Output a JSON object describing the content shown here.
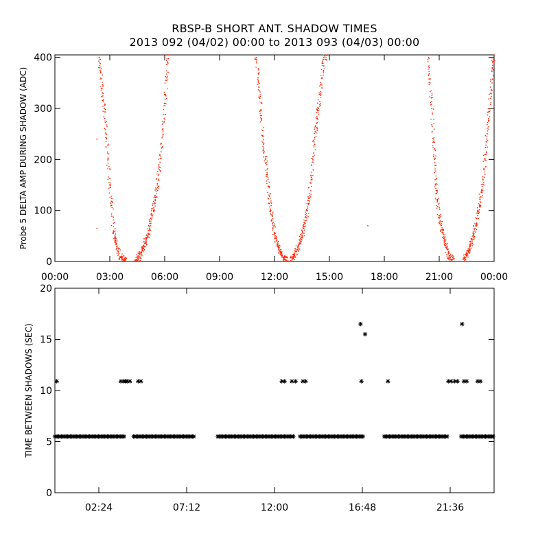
{
  "title": "RBSP-B SHORT ANT. SHADOW TIMES",
  "subtitle": "2013 092 (04/02) 00:00 to 2013 093 (04/03) 00:00",
  "colors": {
    "top_points": "#ff2200",
    "bottom_points": "#000000",
    "axes": "#000000"
  },
  "chart_data": [
    {
      "type": "scatter",
      "ylabel": "Probe 5 DELTA AMP DURING SHADOW (ADC)",
      "xlabel": "",
      "x_unit": "hours since 2013-04-02 00:00",
      "xlim": [
        0,
        24
      ],
      "ylim": [
        0,
        405
      ],
      "xticks": [
        0,
        3,
        6,
        9,
        12,
        15,
        18,
        21,
        24
      ],
      "xtick_labels": [
        "00:00",
        "03:00",
        "06:00",
        "09:00",
        "12:00",
        "15:00",
        "18:00",
        "21:00",
        "00:00"
      ],
      "yticks": [
        0,
        100,
        200,
        300,
        400
      ],
      "ytick_labels": [
        "0",
        "100",
        "200",
        "300",
        "400"
      ],
      "marker": "dot",
      "color": "#ff2200",
      "series": [
        {
          "points": [
            [
              2.3,
              240
            ],
            [
              2.3,
              65
            ],
            [
              17.1,
              70
            ]
          ]
        },
        {
          "points": [
            [
              2.42,
              400
            ],
            [
              2.5,
              370
            ],
            [
              2.6,
              330
            ],
            [
              2.7,
              300
            ],
            [
              2.8,
              250
            ],
            [
              2.9,
              200
            ],
            [
              3.0,
              150
            ],
            [
              3.1,
              110
            ],
            [
              3.2,
              60
            ],
            [
              3.3,
              45
            ],
            [
              3.4,
              30
            ],
            [
              3.5,
              15
            ],
            [
              3.6,
              8
            ],
            [
              3.7,
              4
            ],
            [
              3.8,
              2
            ],
            [
              3.88,
              0
            ],
            [
              11.0,
              400
            ],
            [
              11.1,
              360
            ],
            [
              11.2,
              320
            ],
            [
              11.3,
              280
            ],
            [
              11.4,
              230
            ],
            [
              11.5,
              200
            ],
            [
              11.6,
              170
            ],
            [
              11.7,
              130
            ],
            [
              11.8,
              100
            ],
            [
              11.9,
              75
            ],
            [
              12.0,
              55
            ],
            [
              12.1,
              40
            ],
            [
              12.2,
              28
            ],
            [
              12.3,
              20
            ],
            [
              12.4,
              12
            ],
            [
              12.5,
              6
            ],
            [
              12.6,
              3
            ],
            [
              12.7,
              0
            ],
            [
              20.42,
              400
            ],
            [
              20.5,
              350
            ],
            [
              20.6,
              300
            ],
            [
              20.7,
              240
            ],
            [
              20.75,
              200
            ],
            [
              20.8,
              150
            ],
            [
              20.9,
              120
            ],
            [
              21.0,
              90
            ],
            [
              21.1,
              70
            ],
            [
              21.2,
              55
            ],
            [
              21.3,
              40
            ],
            [
              21.4,
              25
            ],
            [
              21.5,
              15
            ],
            [
              21.6,
              8
            ],
            [
              21.7,
              3
            ],
            [
              21.8,
              0
            ]
          ]
        },
        {
          "points": [
            [
              4.4,
              0
            ],
            [
              4.5,
              5
            ],
            [
              4.6,
              10
            ],
            [
              4.7,
              18
            ],
            [
              4.8,
              25
            ],
            [
              4.9,
              35
            ],
            [
              5.0,
              45
            ],
            [
              5.1,
              55
            ],
            [
              5.2,
              70
            ],
            [
              5.3,
              90
            ],
            [
              5.4,
              105
            ],
            [
              5.5,
              125
            ],
            [
              5.6,
              150
            ],
            [
              5.7,
              180
            ],
            [
              5.8,
              215
            ],
            [
              5.9,
              260
            ],
            [
              6.0,
              310
            ],
            [
              6.1,
              360
            ],
            [
              6.2,
              405
            ],
            [
              12.9,
              0
            ],
            [
              13.0,
              5
            ],
            [
              13.1,
              12
            ],
            [
              13.2,
              20
            ],
            [
              13.3,
              30
            ],
            [
              13.4,
              40
            ],
            [
              13.5,
              52
            ],
            [
              13.6,
              65
            ],
            [
              13.7,
              80
            ],
            [
              13.8,
              100
            ],
            [
              13.9,
              125
            ],
            [
              14.0,
              160
            ],
            [
              14.1,
              200
            ],
            [
              14.2,
              240
            ],
            [
              14.3,
              270
            ],
            [
              14.4,
              300
            ],
            [
              14.5,
              330
            ],
            [
              14.6,
              360
            ],
            [
              14.7,
              400
            ],
            [
              14.9,
              405
            ],
            [
              22.3,
              0
            ],
            [
              22.4,
              5
            ],
            [
              22.5,
              12
            ],
            [
              22.6,
              20
            ],
            [
              22.7,
              30
            ],
            [
              22.8,
              40
            ],
            [
              22.9,
              55
            ],
            [
              23.0,
              70
            ],
            [
              23.1,
              90
            ],
            [
              23.2,
              110
            ],
            [
              23.3,
              135
            ],
            [
              23.4,
              160
            ],
            [
              23.5,
              200
            ],
            [
              23.6,
              240
            ],
            [
              23.7,
              280
            ],
            [
              23.8,
              330
            ],
            [
              23.9,
              380
            ],
            [
              24.0,
              405
            ]
          ]
        }
      ]
    },
    {
      "type": "scatter",
      "ylabel": "TIME BETWEEN SHADOWS (SEC)",
      "xlabel": "",
      "x_unit": "hours since 2013-04-02 00:00",
      "xlim": [
        0,
        24
      ],
      "ylim": [
        0,
        20
      ],
      "xticks": [
        2.4,
        7.2,
        12.0,
        16.8,
        21.6
      ],
      "xtick_labels": [
        "02:24",
        "07:12",
        "12:00",
        "16:48",
        "21:36"
      ],
      "yticks": [
        0,
        5,
        10,
        15,
        20
      ],
      "ytick_labels": [
        "0",
        "5",
        "10",
        "15",
        "20"
      ],
      "marker": "asterisk",
      "color": "#000000",
      "series": [
        {
          "name": "",
          "segments": [
            [
              0,
              3.8,
              5.5
            ],
            [
              4.3,
              7.6,
              5.5
            ],
            [
              8.9,
              13.1,
              5.5
            ],
            [
              13.4,
              16.9,
              5.5
            ],
            [
              18.0,
              21.5,
              5.5
            ],
            [
              22.2,
              24.0,
              5.5
            ]
          ],
          "points": [
            [
              0.1,
              10.9
            ],
            [
              3.6,
              10.9
            ],
            [
              3.75,
              10.9
            ],
            [
              3.85,
              10.9
            ],
            [
              3.95,
              10.9
            ],
            [
              4.1,
              10.9
            ],
            [
              4.55,
              10.9
            ],
            [
              4.7,
              10.9
            ],
            [
              12.4,
              10.9
            ],
            [
              12.55,
              10.9
            ],
            [
              12.95,
              10.9
            ],
            [
              13.15,
              10.9
            ],
            [
              13.55,
              10.9
            ],
            [
              13.7,
              10.9
            ],
            [
              16.7,
              16.5
            ],
            [
              16.95,
              15.5
            ],
            [
              16.75,
              10.9
            ],
            [
              18.2,
              10.9
            ],
            [
              21.5,
              10.9
            ],
            [
              21.65,
              10.9
            ],
            [
              21.85,
              10.9
            ],
            [
              22.0,
              10.9
            ],
            [
              22.25,
              16.5
            ],
            [
              22.35,
              10.9
            ],
            [
              22.5,
              10.9
            ],
            [
              23.1,
              10.9
            ],
            [
              23.25,
              10.9
            ]
          ]
        }
      ]
    }
  ]
}
